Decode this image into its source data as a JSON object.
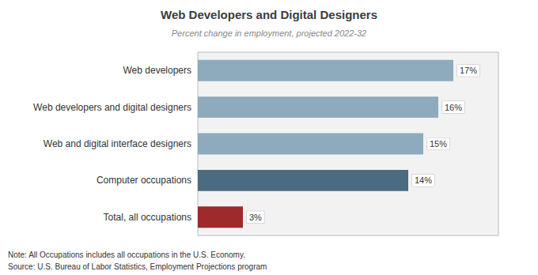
{
  "chart_data": {
    "type": "bar",
    "orientation": "horizontal",
    "title": "Web Developers and Digital Designers",
    "subtitle": "Percent change in employment, projected 2022-32",
    "categories": [
      "Web developers",
      "Web developers and digital designers",
      "Web and digital interface designers",
      "Computer occupations",
      "Total, all occupations"
    ],
    "values": [
      17,
      16,
      15,
      14,
      3
    ],
    "value_labels": [
      "17%",
      "16%",
      "15%",
      "14%",
      "3%"
    ],
    "colors": [
      "#8eabbe",
      "#8eabbe",
      "#8eabbe",
      "#4a6b80",
      "#9e2a2b"
    ],
    "xlim": [
      0,
      20
    ],
    "data_labels": true,
    "tick_labels": "y",
    "grid": false,
    "annotations": [
      "Note: All Occupations includes all occupations in the U.S. Economy.",
      "Source: U.S. Bureau of Labor Statistics, Employment Projections program"
    ]
  }
}
